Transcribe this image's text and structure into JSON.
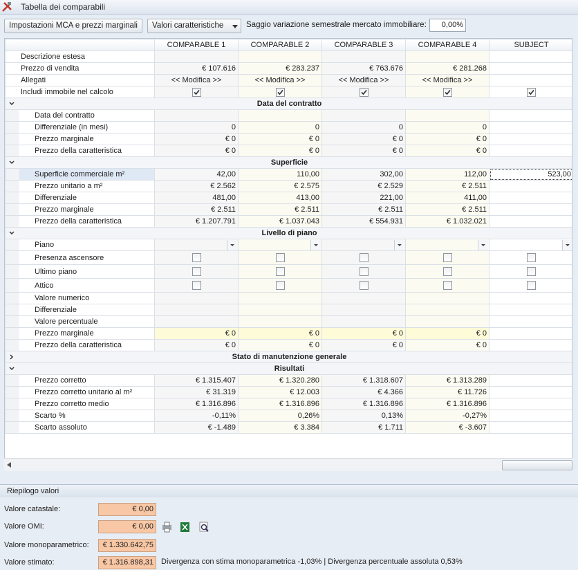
{
  "window": {
    "title": "Tabella dei comparabili"
  },
  "toolbar": {
    "button": "Impostazioni MCA e prezzi marginali",
    "dropdown": "Valori caratteristiche",
    "rate_label": "Saggio variazione semestrale mercato immobiliare:",
    "rate_value": "0,00%"
  },
  "grid": {
    "columns": [
      "COMPARABLE 1",
      "COMPARABLE 2",
      "COMPARABLE 3",
      "COMPARABLE 4",
      "SUBJECT"
    ],
    "rows": [
      {
        "label": "Descrizione estesa",
        "cells": [
          null,
          null,
          null,
          null,
          null
        ]
      },
      {
        "label": "Prezzo di vendita",
        "cells": [
          "€ 107.616",
          "€ 283.237",
          "€ 763.676",
          "€ 281.268",
          null
        ]
      },
      {
        "label": "Allegati",
        "align": "center",
        "cells": [
          "<< Modifica >>",
          "<< Modifica >>",
          "<< Modifica >>",
          "<< Modifica >>",
          null
        ]
      },
      {
        "label": "Includi immobile nel calcolo",
        "type": "checkbox",
        "checked": [
          true,
          true,
          true,
          true,
          true
        ]
      }
    ],
    "groups": [
      {
        "title": "Data del contratto",
        "expanded": true,
        "rows": [
          {
            "label": "Data del contratto",
            "cells": [
              null,
              null,
              null,
              null,
              null
            ]
          },
          {
            "label": "Differenziale (in mesi)",
            "cells": [
              "0",
              "0",
              "0",
              "0",
              null
            ]
          },
          {
            "label": "Prezzo marginale",
            "cells": [
              "€ 0",
              "€ 0",
              "€ 0",
              "€ 0",
              null
            ]
          },
          {
            "label": "Prezzo della caratteristica",
            "cells": [
              "€ 0",
              "€ 0",
              "€ 0",
              "€ 0",
              null
            ]
          }
        ]
      },
      {
        "title": "Superficie",
        "expanded": true,
        "rows": [
          {
            "label": "Superficie commerciale m²",
            "selected": true,
            "cells": [
              "42,00",
              "110,00",
              "302,00",
              "112,00",
              "523,00"
            ]
          },
          {
            "label": "Prezzo unitario a m²",
            "cells": [
              "€ 2.562",
              "€ 2.575",
              "€ 2.529",
              "€ 2.511",
              null
            ]
          },
          {
            "label": "Differenziale",
            "cells": [
              "481,00",
              "413,00",
              "221,00",
              "411,00",
              null
            ]
          },
          {
            "label": "Prezzo marginale",
            "cells": [
              "€ 2.511",
              "€ 2.511",
              "€ 2.511",
              "€ 2.511",
              null
            ]
          },
          {
            "label": "Prezzo della caratteristica",
            "cells": [
              "€ 1.207.791",
              "€ 1.037.043",
              "€ 554.931",
              "€ 1.032.021",
              null
            ]
          }
        ]
      },
      {
        "title": "Livello di piano",
        "expanded": true,
        "rows": [
          {
            "label": "Piano",
            "type": "dropdown",
            "cells": [
              null,
              null,
              null,
              null,
              null
            ]
          },
          {
            "label": "Presenza ascensore",
            "type": "checkbox",
            "checked": [
              false,
              false,
              false,
              false,
              false
            ]
          },
          {
            "label": "Ultimo piano",
            "type": "checkbox",
            "checked": [
              false,
              false,
              false,
              false,
              false
            ]
          },
          {
            "label": "Attico",
            "type": "checkbox",
            "checked": [
              false,
              false,
              false,
              false,
              false
            ]
          },
          {
            "label": "Valore numerico",
            "cells": [
              null,
              null,
              null,
              null,
              null
            ]
          },
          {
            "label": "Differenziale",
            "cells": [
              null,
              null,
              null,
              null,
              null
            ]
          },
          {
            "label": "Valore percentuale",
            "cells": [
              null,
              null,
              null,
              null,
              null
            ]
          },
          {
            "label": "Prezzo marginale",
            "highlight": true,
            "cells": [
              "€ 0",
              "€ 0",
              "€ 0",
              "€ 0",
              null
            ]
          },
          {
            "label": "Prezzo della caratteristica",
            "cells": [
              "€ 0",
              "€ 0",
              "€ 0",
              "€ 0",
              null
            ]
          }
        ]
      },
      {
        "title": "Stato di manutenzione generale",
        "expanded": false,
        "rows": []
      },
      {
        "title": "Risultati",
        "expanded": true,
        "rows": [
          {
            "label": "Prezzo corretto",
            "cells": [
              "€ 1.315.407",
              "€ 1.320.280",
              "€ 1.318.607",
              "€ 1.313.289",
              null
            ]
          },
          {
            "label": "Prezzo corretto unitario al m²",
            "cells": [
              "€ 31.319",
              "€ 12.003",
              "€ 4.366",
              "€ 11.726",
              null
            ]
          },
          {
            "label": "Prezzo corretto medio",
            "cells": [
              "€ 1.316.896",
              "€ 1.316.896",
              "€ 1.316.896",
              "€ 1.316.896",
              null
            ]
          },
          {
            "label": "Scarto %",
            "cells": [
              "-0,11%",
              "0,26%",
              "0,13%",
              "-0,27%",
              null
            ]
          },
          {
            "label": "Scarto assoluto",
            "cells": [
              "€ -1.489",
              "€ 3.384",
              "€ 1.711",
              "€ -3.607",
              null
            ]
          }
        ]
      }
    ]
  },
  "summary": {
    "title": "Riepilogo valori",
    "fields": [
      {
        "label": "Valore catastale:",
        "value": "€ 0,00"
      },
      {
        "label": "Valore OMI:",
        "value": "€ 0,00"
      },
      {
        "label": "Valore monoparametrico:",
        "value": "€ 1.330.642,75"
      },
      {
        "label": "Valore stimato:",
        "value": "€ 1.316.898,31"
      }
    ],
    "note": "Divergenza con stima monoparametrica -1,03% | Divergenza percentuale assoluta 0,53%"
  }
}
